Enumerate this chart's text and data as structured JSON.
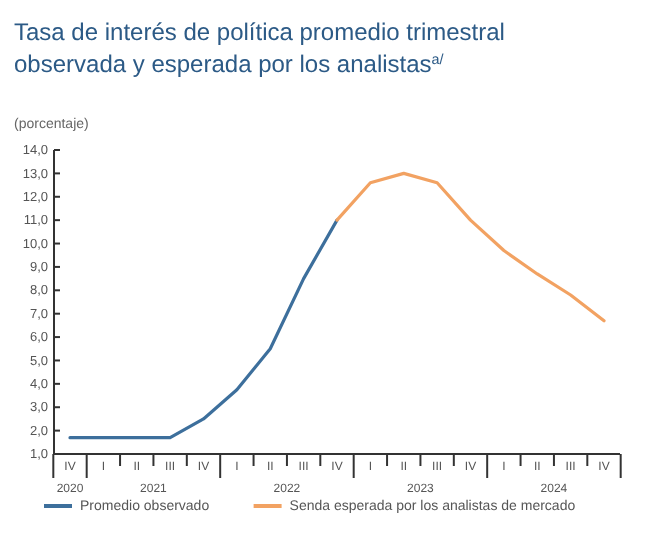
{
  "chart_data": {
    "type": "line",
    "title": "Tasa de interés de política promedio trimestral observada y esperada por los analistas$^{a/}$",
    "ylabel": "(porcentaje)",
    "categories": [
      "IV",
      "I",
      "II",
      "III",
      "IV",
      "I",
      "II",
      "III",
      "IV",
      "I",
      "II",
      "III",
      "IV",
      "I",
      "II",
      "III",
      "IV"
    ],
    "series": [
      {
        "name": "Promedio observado",
        "color": "#3d6f9c",
        "values": [
          1.7,
          1.7,
          1.7,
          1.7,
          2.5,
          3.75,
          5.5,
          8.5,
          11.0,
          null,
          null,
          null,
          null,
          null,
          null,
          null,
          null
        ]
      },
      {
        "name": "Senda esperada por los analistas de mercado",
        "color": "#f2a262",
        "values": [
          null,
          null,
          null,
          null,
          null,
          null,
          null,
          null,
          11.0,
          12.6,
          13.0,
          12.6,
          11.0,
          9.7,
          8.7,
          7.8,
          6.7
        ]
      }
    ],
    "annotations": [
      "2020",
      "2021",
      "2022",
      "2023",
      "2024"
    ],
    "ylim": [
      1,
      14
    ],
    "yticks": [
      {
        "value": 1,
        "label": "1,0"
      },
      {
        "value": 2,
        "label": "2,0"
      },
      {
        "value": 3,
        "label": "3,0"
      },
      {
        "value": 4,
        "label": "4,0"
      },
      {
        "value": 5,
        "label": "5,0"
      },
      {
        "value": 6,
        "label": "6,0"
      },
      {
        "value": 7,
        "label": "7,0"
      },
      {
        "value": 8,
        "label": "8,0"
      },
      {
        "value": 9,
        "label": "9,0"
      },
      {
        "value": 10,
        "label": "10,0"
      },
      {
        "value": 11,
        "label": "11,0"
      },
      {
        "value": 12,
        "label": "12,0"
      },
      {
        "value": 13,
        "label": "13,0"
      },
      {
        "value": 14,
        "label": "14,0"
      }
    ],
    "grid": false,
    "legend": "bottom",
    "marker": "none",
    "line_style": "solid"
  }
}
